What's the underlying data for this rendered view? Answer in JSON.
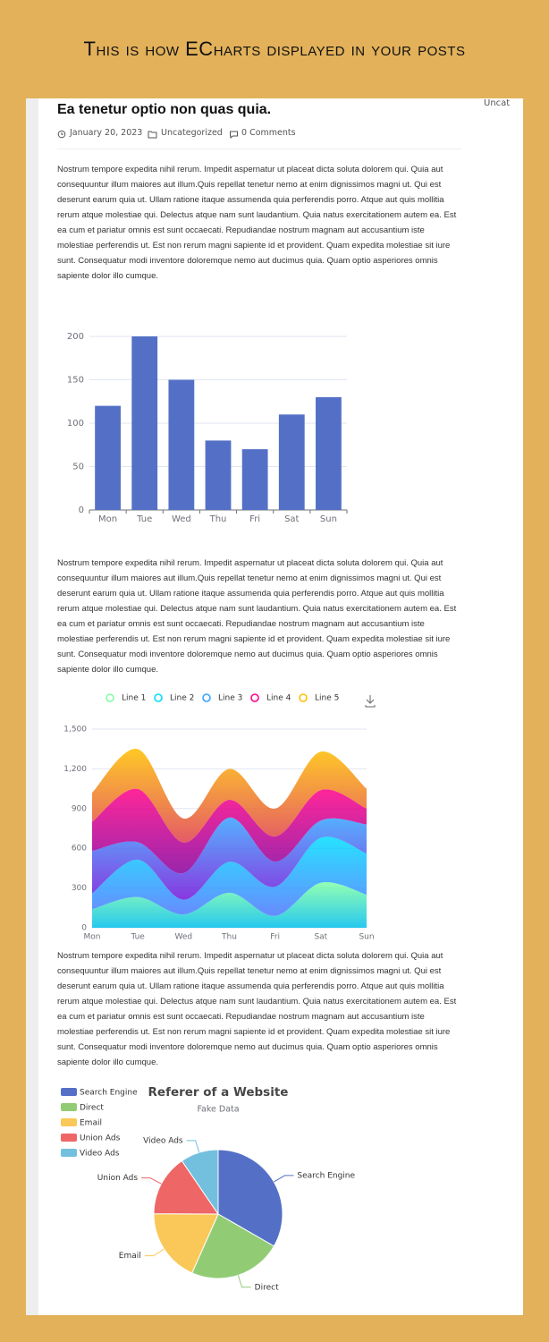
{
  "header": {
    "title": "This is how ECharts displayed in your posts"
  },
  "sidebar": {
    "text": "Uncat"
  },
  "post": {
    "title": "Ea tenetur optio non quas quia.",
    "date": "January 20, 2023",
    "category": "Uncategorized",
    "comments": "0 Comments",
    "paragraphs": [
      "Nostrum tempore expedita nihil rerum. Impedit aspernatur ut placeat dicta soluta dolorem qui. Quia aut consequuntur illum maiores aut illum.Quis repellat tenetur nemo at enim dignissimos magni ut. Qui est deserunt earum quia ut. Ullam ratione itaque assumenda quia perferendis porro. Atque aut quis mollitia rerum atque molestiae qui. Delectus atque nam sunt laudantium. Quia natus exercitationem autem ea. Est ea cum et pariatur omnis est sunt occaecati. Repudiandae nostrum magnam aut accusantium iste molestiae perferendis ut. Est non rerum magni sapiente id et provident. Quam expedita molestiae sit iure sunt. Consequatur modi inventore doloremque nemo aut ducimus quia. Quam optio asperiores omnis sapiente dolor illo cumque.",
      "Nostrum tempore expedita nihil rerum. Impedit aspernatur ut placeat dicta soluta dolorem qui. Quia aut consequuntur illum maiores aut illum.Quis repellat tenetur nemo at enim dignissimos magni ut. Qui est deserunt earum quia ut. Ullam ratione itaque assumenda quia perferendis porro. Atque aut quis mollitia rerum atque molestiae qui. Delectus atque nam sunt laudantium. Quia natus exercitationem autem ea. Est ea cum et pariatur omnis est sunt occaecati. Repudiandae nostrum magnam aut accusantium iste molestiae perferendis ut. Est non rerum magni sapiente id et provident. Quam expedita molestiae sit iure sunt. Consequatur modi inventore doloremque nemo aut ducimus quia. Quam optio asperiores omnis sapiente dolor illo cumque.",
      "Nostrum tempore expedita nihil rerum. Impedit aspernatur ut placeat dicta soluta dolorem qui. Quia aut consequuntur illum maiores aut illum.Quis repellat tenetur nemo at enim dignissimos magni ut. Qui est deserunt earum quia ut. Ullam ratione itaque assumenda quia perferendis porro. Atque aut quis mollitia rerum atque molestiae qui. Delectus atque nam sunt laudantium. Quia natus exercitationem autem ea. Est ea cum et pariatur omnis est sunt occaecati. Repudiandae nostrum magnam aut accusantium iste molestiae perferendis ut. Est non rerum magni sapiente id et provident. Quam expedita molestiae sit iure sunt. Consequatur modi inventore doloremque nemo aut ducimus quia. Quam optio asperiores omnis sapiente dolor illo cumque."
    ]
  },
  "chart_data": [
    {
      "type": "bar",
      "categories": [
        "Mon",
        "Tue",
        "Wed",
        "Thu",
        "Fri",
        "Sat",
        "Sun"
      ],
      "values": [
        120,
        200,
        150,
        80,
        70,
        110,
        130
      ],
      "color": "#5470c6",
      "ylim": [
        0,
        200
      ],
      "yticks": [
        0,
        50,
        100,
        150,
        200
      ],
      "grid": true
    },
    {
      "type": "area",
      "stacked": true,
      "smooth": true,
      "categories": [
        "Mon",
        "Tue",
        "Wed",
        "Thu",
        "Fri",
        "Sat",
        "Sun"
      ],
      "series": [
        {
          "name": "Line 1",
          "color": "#80ffa5",
          "color2": "#01bfec",
          "values": [
            140,
            232,
            101,
            264,
            90,
            340,
            250
          ]
        },
        {
          "name": "Line 2",
          "color": "#00ddff",
          "color2": "#4d77ff",
          "values": [
            120,
            282,
            111,
            234,
            220,
            340,
            310
          ]
        },
        {
          "name": "Line 3",
          "color": "#37a2ff",
          "color2": "#7415db",
          "values": [
            320,
            132,
            201,
            334,
            190,
            130,
            220
          ]
        },
        {
          "name": "Line 4",
          "color": "#ff0087",
          "color2": "#87009d",
          "values": [
            220,
            402,
            231,
            134,
            190,
            230,
            120
          ]
        },
        {
          "name": "Line 5",
          "color": "#ffbf00",
          "color2": "#e03e4c",
          "values": [
            220,
            302,
            181,
            234,
            210,
            290,
            150
          ]
        }
      ],
      "ylim": [
        0,
        1500
      ],
      "yticks": [
        0,
        300,
        600,
        900,
        {
          "value": 1200,
          "label": "1,200"
        },
        {
          "value": 1500,
          "label": "1,500"
        }
      ],
      "grid": true,
      "legend": "top"
    },
    {
      "type": "pie",
      "title": "Referer of a Website",
      "subtitle": "Fake Data",
      "categories": [
        "Search Engine",
        "Direct",
        "Email",
        "Union Ads",
        "Video Ads"
      ],
      "values": [
        1048,
        735,
        580,
        484,
        300
      ],
      "colors": [
        "#5470c6",
        "#91cc75",
        "#fac858",
        "#ee6666",
        "#73c0de"
      ],
      "legend": "top-left"
    }
  ]
}
